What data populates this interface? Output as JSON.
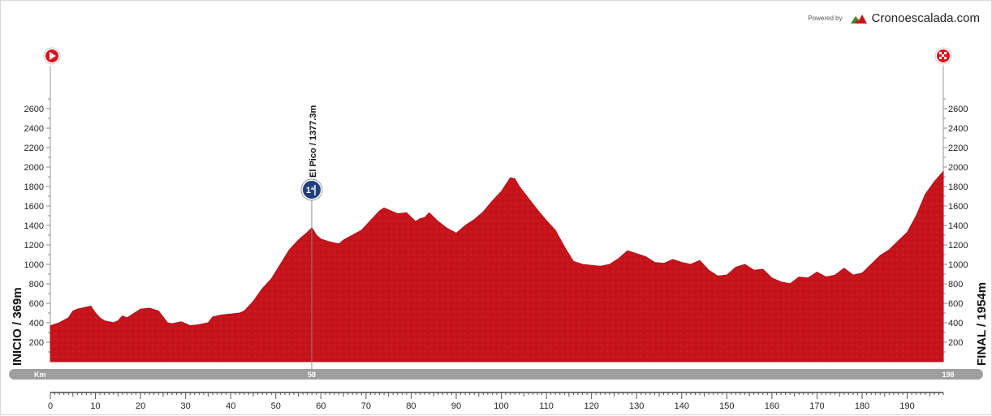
{
  "branding": {
    "powered_by": "Powered by",
    "name": "Cronoescalada.com"
  },
  "profile": {
    "start_label": "INICIO / 369m",
    "finish_label": "FINAL / 1954m",
    "km_label": "Km",
    "km_markers": [
      "58",
      "198"
    ],
    "climb": {
      "name": "El Pico / 1377.3m",
      "km": 58,
      "altitude": 1377.3,
      "category": "1ª"
    },
    "fill_color": "#c7141b",
    "bar_color": "#9e9e9e"
  },
  "chart_data": {
    "type": "area",
    "title": "",
    "xlabel": "Km",
    "ylabel": "",
    "xlim": [
      0,
      198
    ],
    "ylim": [
      0,
      2800
    ],
    "x_ticks": [
      0,
      10,
      20,
      30,
      40,
      50,
      60,
      70,
      80,
      90,
      100,
      110,
      120,
      130,
      140,
      150,
      160,
      170,
      180,
      190
    ],
    "y_ticks": [
      200,
      400,
      600,
      800,
      1000,
      1200,
      1400,
      1600,
      1800,
      2000,
      2200,
      2400,
      2600
    ],
    "series": [
      {
        "x": [
          0,
          2,
          4,
          5,
          6,
          8,
          9,
          10,
          11,
          12,
          14,
          15,
          16,
          17,
          18,
          20,
          22,
          24,
          26,
          27,
          29,
          31,
          33,
          35,
          36,
          38,
          40,
          42,
          43,
          45,
          47,
          49,
          51,
          53,
          55,
          57,
          58,
          59,
          60,
          62,
          64,
          65,
          67,
          69,
          71,
          73,
          74,
          75,
          77,
          79,
          81,
          82,
          83,
          84,
          86,
          88,
          90,
          92,
          94,
          96,
          98,
          100,
          102,
          103,
          104,
          106,
          108,
          110,
          112,
          114,
          116,
          118,
          120,
          122,
          124,
          126,
          128,
          130,
          132,
          134,
          136,
          138,
          140,
          142,
          144,
          146,
          148,
          150,
          152,
          154,
          156,
          158,
          160,
          162,
          164,
          166,
          168,
          170,
          172,
          174,
          176,
          178,
          180,
          182,
          184,
          186,
          188,
          190,
          192,
          194,
          196,
          198
        ],
        "y": [
          369,
          400,
          450,
          520,
          540,
          560,
          570,
          500,
          450,
          420,
          400,
          420,
          470,
          450,
          480,
          540,
          550,
          520,
          400,
          390,
          410,
          370,
          380,
          400,
          460,
          480,
          490,
          500,
          520,
          620,
          750,
          850,
          1000,
          1150,
          1250,
          1330,
          1377,
          1300,
          1260,
          1230,
          1210,
          1250,
          1300,
          1350,
          1450,
          1550,
          1580,
          1560,
          1520,
          1530,
          1440,
          1470,
          1480,
          1530,
          1440,
          1370,
          1320,
          1400,
          1460,
          1540,
          1650,
          1750,
          1890,
          1880,
          1800,
          1680,
          1560,
          1450,
          1350,
          1180,
          1030,
          1000,
          990,
          980,
          1000,
          1060,
          1140,
          1110,
          1080,
          1020,
          1010,
          1050,
          1020,
          1000,
          1040,
          940,
          880,
          890,
          970,
          1000,
          940,
          950,
          860,
          820,
          800,
          870,
          860,
          920,
          870,
          890,
          960,
          890,
          910,
          1000,
          1090,
          1150,
          1240,
          1330,
          1500,
          1720,
          1850,
          1954
        ]
      }
    ]
  }
}
